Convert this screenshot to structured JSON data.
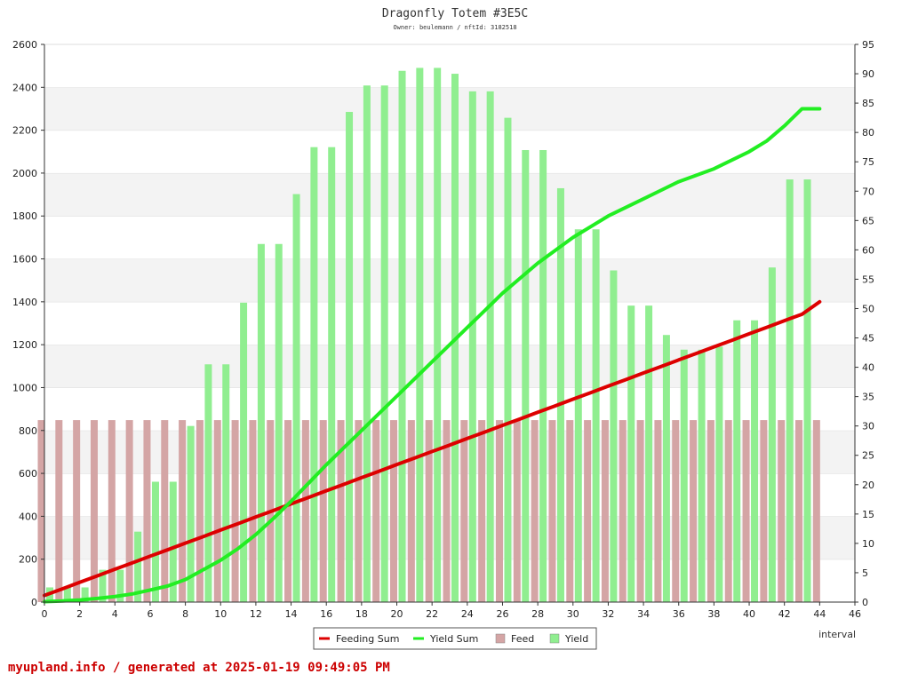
{
  "chart_data": {
    "type": "bar+line",
    "title": "Dragonfly Totem #3E5C",
    "subtitle": "Owner: beulemann / nftId: 3182518",
    "xlabel": "interval",
    "xlim": [
      0,
      46
    ],
    "x_ticks": [
      0,
      2,
      4,
      6,
      8,
      10,
      12,
      14,
      16,
      18,
      20,
      22,
      24,
      26,
      28,
      30,
      32,
      34,
      36,
      38,
      40,
      42,
      44,
      46
    ],
    "left_axis": {
      "ylim": [
        0,
        2600
      ],
      "ticks": [
        0,
        200,
        400,
        600,
        800,
        1000,
        1200,
        1400,
        1600,
        1800,
        2000,
        2200,
        2400,
        2600
      ]
    },
    "right_axis": {
      "ylim": [
        0,
        95
      ],
      "ticks": [
        0,
        5,
        10,
        15,
        20,
        25,
        30,
        35,
        40,
        45,
        50,
        55,
        60,
        65,
        70,
        75,
        80,
        85,
        90,
        95
      ]
    },
    "grid": "horizontal bands",
    "legend_position": "bottom",
    "x": [
      0,
      1,
      2,
      3,
      4,
      5,
      6,
      7,
      8,
      9,
      10,
      11,
      12,
      13,
      14,
      15,
      16,
      17,
      18,
      19,
      20,
      21,
      22,
      23,
      24,
      25,
      26,
      27,
      28,
      29,
      30,
      31,
      32,
      33,
      34,
      35,
      36,
      37,
      38,
      39,
      40,
      41,
      42,
      43,
      44
    ],
    "series": [
      {
        "name": "Feeding Sum",
        "kind": "line",
        "axis": "left",
        "color": "#dd0000",
        "values": [
          31,
          61,
          92,
          122,
          153,
          183,
          214,
          244,
          275,
          305,
          336,
          366,
          397,
          427,
          458,
          488,
          519,
          549,
          580,
          610,
          641,
          671,
          702,
          732,
          763,
          793,
          824,
          854,
          885,
          915,
          946,
          976,
          1007,
          1037,
          1068,
          1098,
          1129,
          1159,
          1190,
          1220,
          1251,
          1281,
          1312,
          1342,
          1400
        ]
      },
      {
        "name": "Yield Sum",
        "kind": "line",
        "axis": "left",
        "color": "#22ee22",
        "values": [
          2,
          5,
          10,
          17,
          26,
          38,
          56,
          75,
          105,
          150,
          195,
          250,
          315,
          390,
          470,
          555,
          640,
          720,
          800,
          880,
          960,
          1040,
          1120,
          1200,
          1280,
          1360,
          1440,
          1510,
          1580,
          1640,
          1700,
          1750,
          1800,
          1840,
          1880,
          1920,
          1960,
          1990,
          2020,
          2060,
          2100,
          2150,
          2220,
          2300,
          2300
        ]
      },
      {
        "name": "Feed",
        "kind": "bar",
        "axis": "right",
        "color": "#d4a5a5",
        "values": [
          31,
          31,
          31,
          31,
          31,
          31,
          31,
          31,
          31,
          31,
          31,
          31,
          31,
          31,
          31,
          31,
          31,
          31,
          31,
          31,
          31,
          31,
          31,
          31,
          31,
          31,
          31,
          31,
          31,
          31,
          31,
          31,
          31,
          31,
          31,
          31,
          31,
          31,
          31,
          31,
          31,
          31,
          31,
          31,
          31
        ]
      },
      {
        "name": "Yield",
        "kind": "bar",
        "axis": "right",
        "color": "#90ee90",
        "values": [
          2.5,
          2.5,
          2.5,
          5.5,
          5.5,
          12,
          20.5,
          20.5,
          30,
          40.5,
          40.5,
          51,
          61,
          61,
          69.5,
          77.5,
          77.5,
          83.5,
          88,
          88,
          90.5,
          91,
          91,
          90,
          87,
          87,
          82.5,
          77,
          77,
          70.5,
          63.5,
          63.5,
          56.5,
          50.5,
          50.5,
          45.5,
          43,
          43,
          43.5,
          48,
          48,
          57,
          72,
          72,
          0
        ]
      }
    ]
  },
  "footer": "myupland.info / generated at 2025-01-19 09:49:05 PM"
}
